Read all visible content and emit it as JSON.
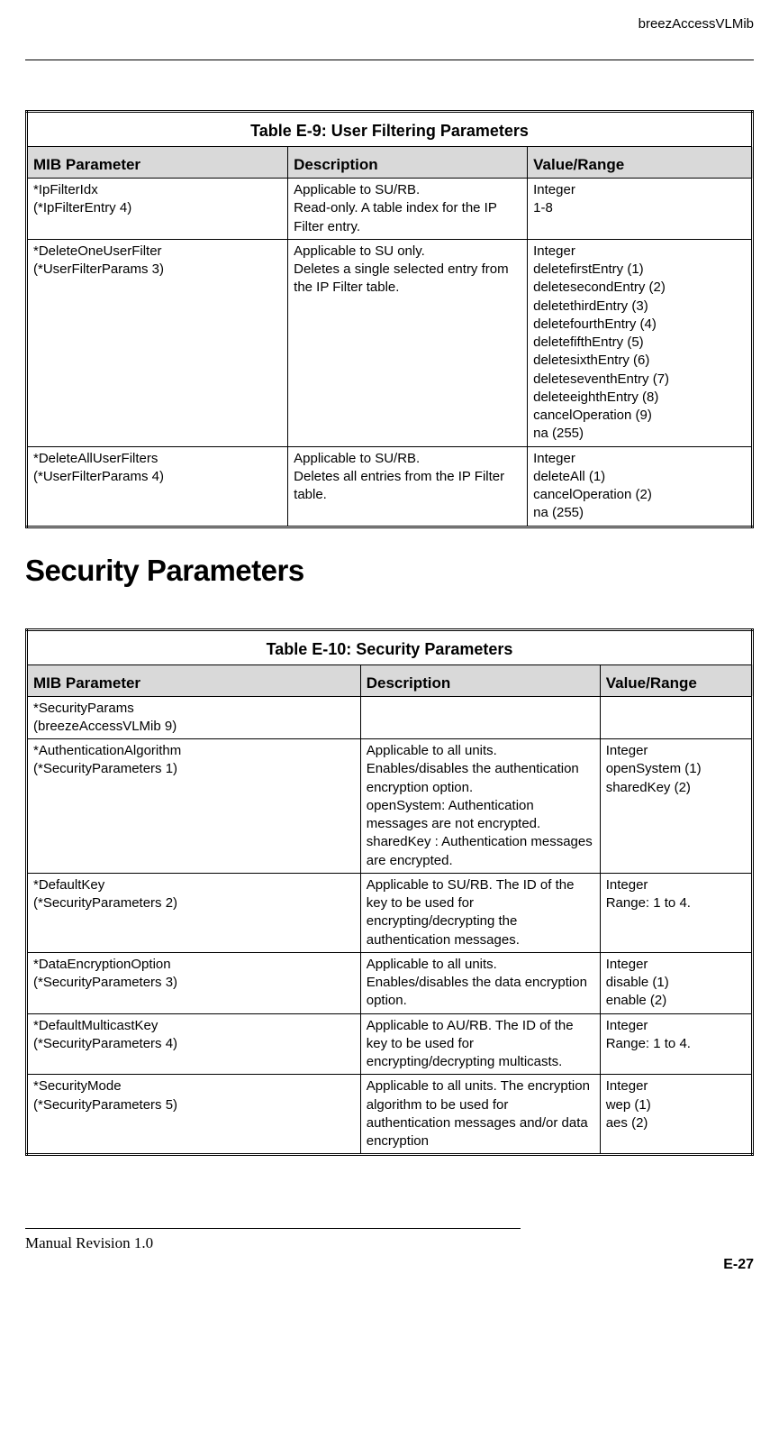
{
  "header": {
    "label": "breezAccessVLMib"
  },
  "table1": {
    "title": "Table E-9: User Filtering Parameters",
    "columns": [
      "MIB Parameter",
      "Description",
      "Value/Range"
    ],
    "col_widths": [
      "36%",
      "33%",
      "31%"
    ],
    "rows": [
      {
        "mib": "*IpFilterIdx\n(*IpFilterEntry 4)",
        "desc": "Applicable to SU/RB.\nRead-only. A table index for the IP Filter entry.",
        "value": "Integer\n1-8"
      },
      {
        "mib": "*DeleteOneUserFilter\n(*UserFilterParams 3)",
        "desc": "Applicable to SU only.\nDeletes a single selected entry from the IP Filter table.",
        "value": "Integer\ndeletefirstEntry (1)\ndeletesecondEntry (2)\ndeletethirdEntry (3)\ndeletefourthEntry (4)\ndeletefifthEntry (5)\ndeletesixthEntry (6)\ndeleteseventhEntry (7)\ndeleteeighthEntry (8)\ncancelOperation (9)\nna (255)"
      },
      {
        "mib": "*DeleteAllUserFilters\n(*UserFilterParams 4)",
        "desc": "Applicable to SU/RB.\nDeletes all entries from the IP Filter table.",
        "value": "Integer\ndeleteAll (1)\ncancelOperation (2)\nna (255)"
      }
    ]
  },
  "section_heading": "Security Parameters",
  "table2": {
    "title": "Table E-10: Security Parameters",
    "columns": [
      "MIB Parameter",
      "Description",
      "Value/Range"
    ],
    "col_widths": [
      "46%",
      "33%",
      "21%"
    ],
    "rows": [
      {
        "mib": "*SecurityParams\n(breezeAccessVLMib 9)",
        "desc": "",
        "value": ""
      },
      {
        "mib": "*AuthenticationAlgorithm\n(*SecurityParameters 1)",
        "desc": "Applicable to all units.\nEnables/disables the authentication encryption option.\nopenSystem: Authentication messages are not encrypted.\nsharedKey : Authentication messages are encrypted.",
        "value": "Integer\nopenSystem (1)\nsharedKey (2)"
      },
      {
        "mib": "*DefaultKey\n(*SecurityParameters 2)",
        "desc": "Applicable to SU/RB. The ID of the key to be used for encrypting/decrypting the authentication messages.",
        "value": "Integer\nRange: 1 to 4."
      },
      {
        "mib": "*DataEncryptionOption\n(*SecurityParameters 3)",
        "desc": "Applicable to all units.\nEnables/disables the data encryption option.",
        "value": "Integer\ndisable (1)\nenable (2)"
      },
      {
        "mib": "*DefaultMulticastKey\n(*SecurityParameters 4)",
        "desc": "Applicable to AU/RB. The ID of the key to be used for encrypting/decrypting multicasts.",
        "value": "Integer\nRange: 1 to 4."
      },
      {
        "mib": "*SecurityMode\n(*SecurityParameters 5)",
        "desc": "Applicable to all units. The encryption algorithm to be used for authentication messages and/or data encryption",
        "value": "Integer\nwep (1)\naes (2)"
      }
    ]
  },
  "footer": {
    "left": "Manual Revision 1.0",
    "right": "E-27"
  }
}
